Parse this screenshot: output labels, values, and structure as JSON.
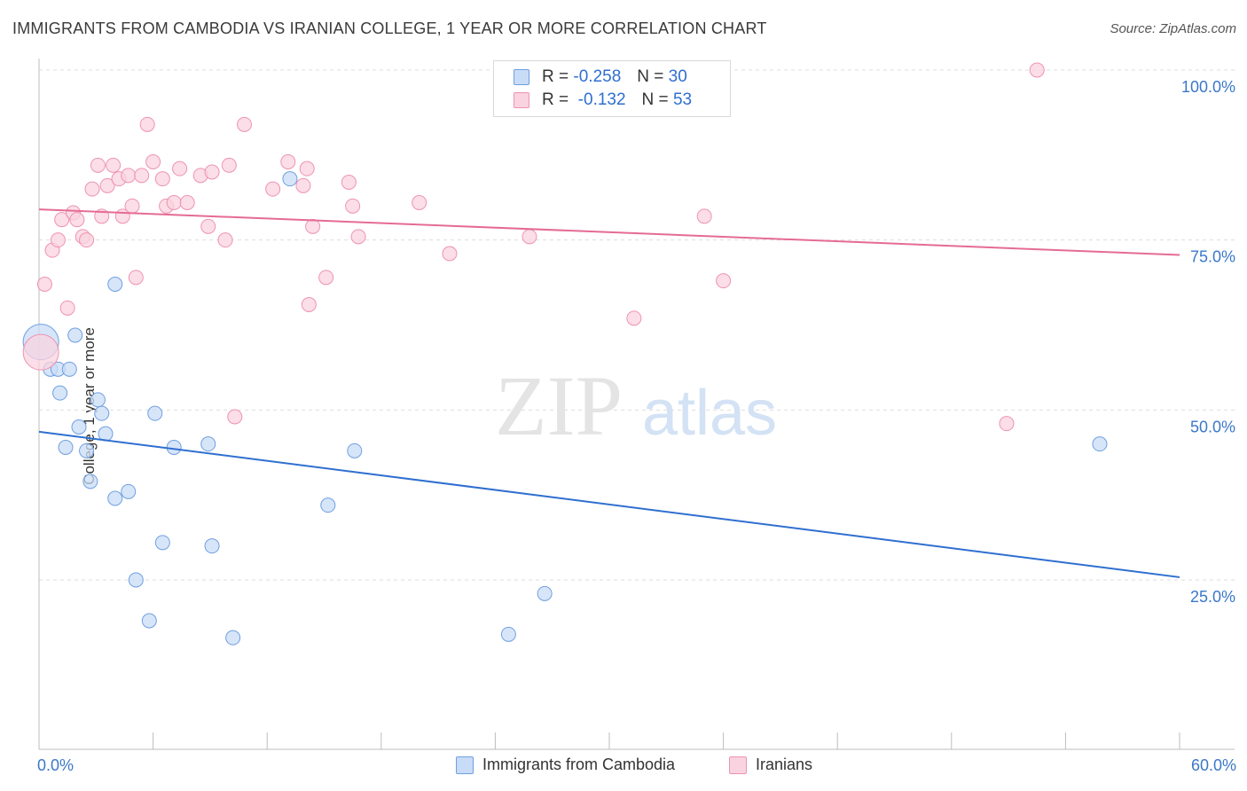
{
  "title": "IMMIGRANTS FROM CAMBODIA VS IRANIAN COLLEGE, 1 YEAR OR MORE CORRELATION CHART",
  "source": "Source: ZipAtlas.com",
  "watermark": {
    "zip": "ZIP",
    "atlas": "atlas"
  },
  "legend_stats": {
    "rows": [
      {
        "r_label": "R =",
        "r_value": "-0.258",
        "n_label": "N =",
        "n_value": "30",
        "color": "#a9c8f2",
        "border": "#6f9fe0"
      },
      {
        "r_label": "R =",
        "r_value": "-0.132",
        "n_label": "N =",
        "n_value": "53",
        "color": "#f7c2d3",
        "border": "#ee93b1"
      }
    ]
  },
  "bottom_legend": [
    {
      "label": "Immigrants from Cambodia",
      "color": "#c9dcf7",
      "border": "#6f9fe0"
    },
    {
      "label": "Iranians",
      "color": "#f9d3df",
      "border": "#ee93b1"
    }
  ],
  "chart_data": {
    "type": "scatter",
    "title": "IMMIGRANTS FROM CAMBODIA VS IRANIAN COLLEGE, 1 YEAR OR MORE CORRELATION CHART",
    "xlabel": "",
    "ylabel": "College, 1 year or more",
    "xlim": [
      0,
      60
    ],
    "ylim": [
      0,
      105
    ],
    "x_tick_labels": [
      "0.0%",
      "60.0%"
    ],
    "y_ticks": [
      25,
      50,
      75,
      100
    ],
    "y_tick_labels": [
      "25.0%",
      "50.0%",
      "75.0%",
      "100.0%"
    ],
    "grid": "horizontal dashed",
    "series": [
      {
        "name": "Immigrants from Cambodia",
        "color": "#6f9fe0",
        "fill": "#c9dcf7",
        "trend": {
          "x": [
            0,
            60
          ],
          "y": [
            46.8,
            25.4
          ],
          "color": "#2f6fd0"
        },
        "points": [
          {
            "x": 0.1,
            "y": 60,
            "size": "large"
          },
          {
            "x": 0.6,
            "y": 56
          },
          {
            "x": 1.0,
            "y": 56
          },
          {
            "x": 1.6,
            "y": 56
          },
          {
            "x": 1.9,
            "y": 61
          },
          {
            "x": 1.1,
            "y": 52.5
          },
          {
            "x": 2.1,
            "y": 47.5
          },
          {
            "x": 1.4,
            "y": 44.5
          },
          {
            "x": 2.5,
            "y": 44
          },
          {
            "x": 3.1,
            "y": 51.5
          },
          {
            "x": 3.3,
            "y": 49.5
          },
          {
            "x": 3.5,
            "y": 46.5
          },
          {
            "x": 2.7,
            "y": 39.5
          },
          {
            "x": 4.0,
            "y": 68.5
          },
          {
            "x": 4.0,
            "y": 37
          },
          {
            "x": 4.7,
            "y": 38
          },
          {
            "x": 6.1,
            "y": 49.5
          },
          {
            "x": 7.1,
            "y": 44.5
          },
          {
            "x": 8.9,
            "y": 45
          },
          {
            "x": 6.5,
            "y": 30.5
          },
          {
            "x": 9.1,
            "y": 30
          },
          {
            "x": 5.1,
            "y": 25
          },
          {
            "x": 5.8,
            "y": 19
          },
          {
            "x": 10.2,
            "y": 16.5
          },
          {
            "x": 13.2,
            "y": 84
          },
          {
            "x": 15.2,
            "y": 36
          },
          {
            "x": 16.6,
            "y": 44
          },
          {
            "x": 24.7,
            "y": 17
          },
          {
            "x": 26.6,
            "y": 23
          },
          {
            "x": 55.8,
            "y": 45
          }
        ]
      },
      {
        "name": "Iranians",
        "color": "#ee93b1",
        "fill": "#f9d3df",
        "trend": {
          "x": [
            0,
            60
          ],
          "y": [
            79.5,
            72.8
          ],
          "color": "#e56b96"
        },
        "points": [
          {
            "x": 0.1,
            "y": 58.5,
            "size": "large"
          },
          {
            "x": 0.3,
            "y": 68.5
          },
          {
            "x": 0.7,
            "y": 73.5
          },
          {
            "x": 1.0,
            "y": 75
          },
          {
            "x": 1.2,
            "y": 78
          },
          {
            "x": 1.5,
            "y": 65
          },
          {
            "x": 1.8,
            "y": 79
          },
          {
            "x": 2.0,
            "y": 78
          },
          {
            "x": 2.3,
            "y": 75.5
          },
          {
            "x": 2.5,
            "y": 75
          },
          {
            "x": 2.8,
            "y": 82.5
          },
          {
            "x": 3.1,
            "y": 86
          },
          {
            "x": 3.3,
            "y": 78.5
          },
          {
            "x": 3.6,
            "y": 83
          },
          {
            "x": 3.9,
            "y": 86
          },
          {
            "x": 4.2,
            "y": 84
          },
          {
            "x": 4.4,
            "y": 78.5
          },
          {
            "x": 4.7,
            "y": 84.5
          },
          {
            "x": 4.9,
            "y": 80
          },
          {
            "x": 5.1,
            "y": 69.5
          },
          {
            "x": 5.4,
            "y": 84.5
          },
          {
            "x": 5.7,
            "y": 92
          },
          {
            "x": 6.0,
            "y": 86.5
          },
          {
            "x": 6.5,
            "y": 84
          },
          {
            "x": 6.7,
            "y": 80
          },
          {
            "x": 7.1,
            "y": 80.5
          },
          {
            "x": 7.4,
            "y": 85.5
          },
          {
            "x": 7.8,
            "y": 80.5
          },
          {
            "x": 8.5,
            "y": 84.5
          },
          {
            "x": 8.9,
            "y": 77
          },
          {
            "x": 9.1,
            "y": 85
          },
          {
            "x": 9.8,
            "y": 75
          },
          {
            "x": 10.0,
            "y": 86
          },
          {
            "x": 10.3,
            "y": 49
          },
          {
            "x": 10.8,
            "y": 92
          },
          {
            "x": 12.3,
            "y": 82.5
          },
          {
            "x": 13.1,
            "y": 86.5
          },
          {
            "x": 13.9,
            "y": 83
          },
          {
            "x": 14.1,
            "y": 85.5
          },
          {
            "x": 14.4,
            "y": 77
          },
          {
            "x": 14.2,
            "y": 65.5
          },
          {
            "x": 15.1,
            "y": 69.5
          },
          {
            "x": 16.3,
            "y": 83.5
          },
          {
            "x": 16.5,
            "y": 80
          },
          {
            "x": 16.8,
            "y": 75.5
          },
          {
            "x": 20.0,
            "y": 80.5
          },
          {
            "x": 21.6,
            "y": 73
          },
          {
            "x": 25.8,
            "y": 75.5
          },
          {
            "x": 31.3,
            "y": 63.5
          },
          {
            "x": 35.0,
            "y": 78.5
          },
          {
            "x": 36.0,
            "y": 69
          },
          {
            "x": 50.9,
            "y": 48
          },
          {
            "x": 52.5,
            "y": 100
          }
        ]
      }
    ]
  }
}
